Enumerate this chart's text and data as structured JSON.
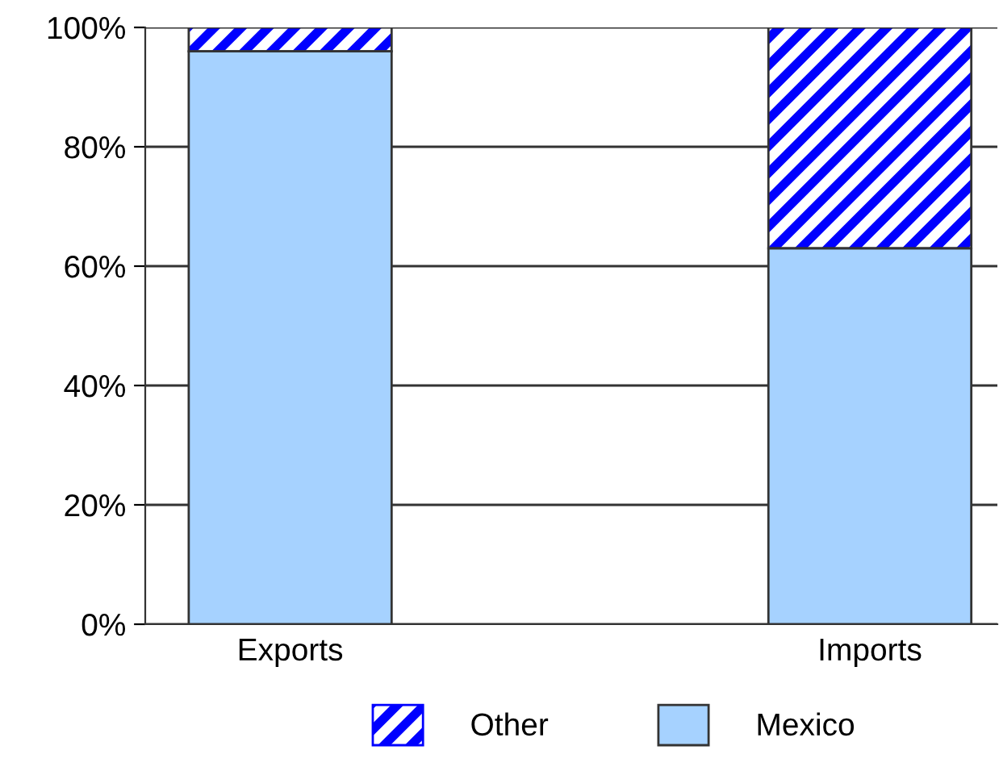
{
  "chart_data": {
    "type": "bar",
    "stacked": true,
    "categories": [
      "Exports",
      "Imports"
    ],
    "series": [
      {
        "name": "Mexico",
        "color": "#a6d2ff",
        "values": [
          96,
          63
        ]
      },
      {
        "name": "Other",
        "color": "#0000ff",
        "values": [
          4,
          37
        ]
      }
    ],
    "ylim": [
      0,
      100
    ],
    "yticks": [
      {
        "value": 0,
        "label": "0%"
      },
      {
        "value": 20,
        "label": "20%"
      },
      {
        "value": 40,
        "label": "40%"
      },
      {
        "value": 60,
        "label": "60%"
      },
      {
        "value": 80,
        "label": "80%"
      },
      {
        "value": 100,
        "label": "100%"
      }
    ],
    "grid": "y",
    "legend": "bottom"
  }
}
